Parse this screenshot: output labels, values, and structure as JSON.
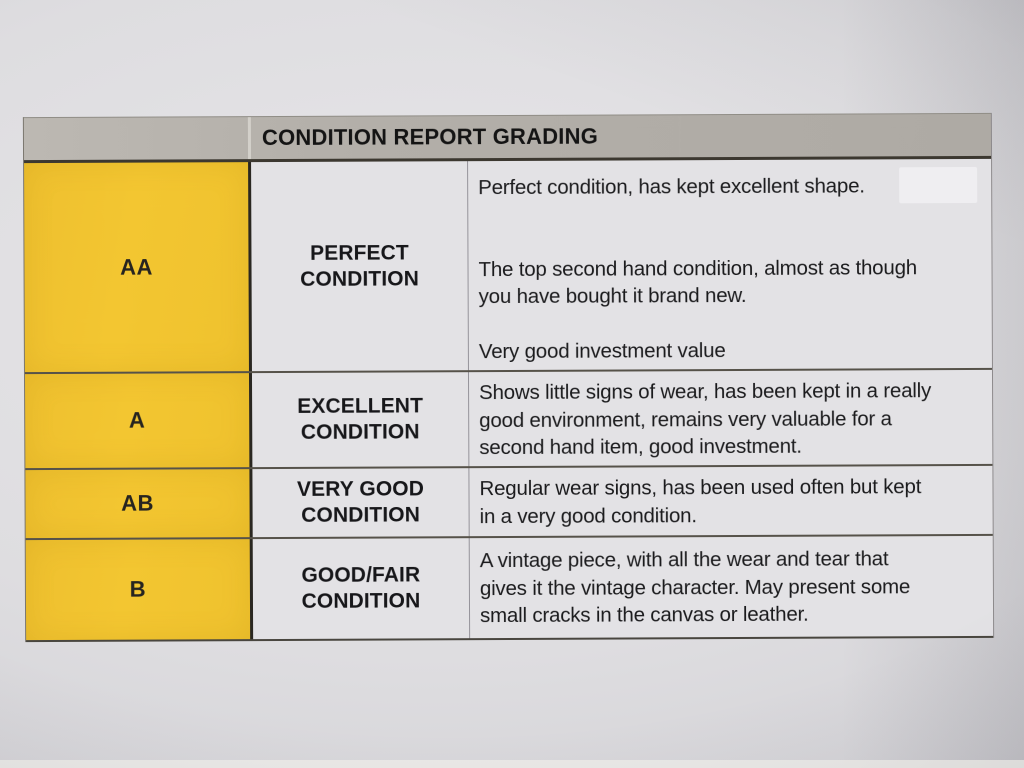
{
  "document": {
    "header": {
      "title": "CONDITION REPORT GRADING"
    },
    "rows": [
      {
        "grade": "AA",
        "label": "PERFECT\nCONDITION",
        "paragraphs": [
          "Perfect condition, has kept excellent shape.",
          "The top second hand condition, almost as though\nyou have bought it brand new.",
          "Very good investment value"
        ]
      },
      {
        "grade": "A",
        "label": "EXCELLENT\nCONDITION",
        "paragraphs": [
          "Shows little signs of wear, has been kept in a really\ngood environment, remains very valuable for a\nsecond hand item, good investment."
        ]
      },
      {
        "grade": "AB",
        "label": "VERY GOOD\nCONDITION",
        "paragraphs": [
          "Regular wear signs, has been used often but kept\nin a very good condition."
        ]
      },
      {
        "grade": "B",
        "label": "GOOD/FAIR\nCONDITION",
        "paragraphs": [
          "A vintage piece, with all the wear and tear that\ngives it the vintage character. May present some\nsmall cracks in the canvas or leather."
        ]
      }
    ],
    "colors": {
      "grade_column_yellow": "#f2c431",
      "header_bg_gray": "#b3afa9",
      "cell_bg": "#e3e2e5",
      "text": "#1b1b1d",
      "header_divider_dark": "#3c3830"
    }
  }
}
